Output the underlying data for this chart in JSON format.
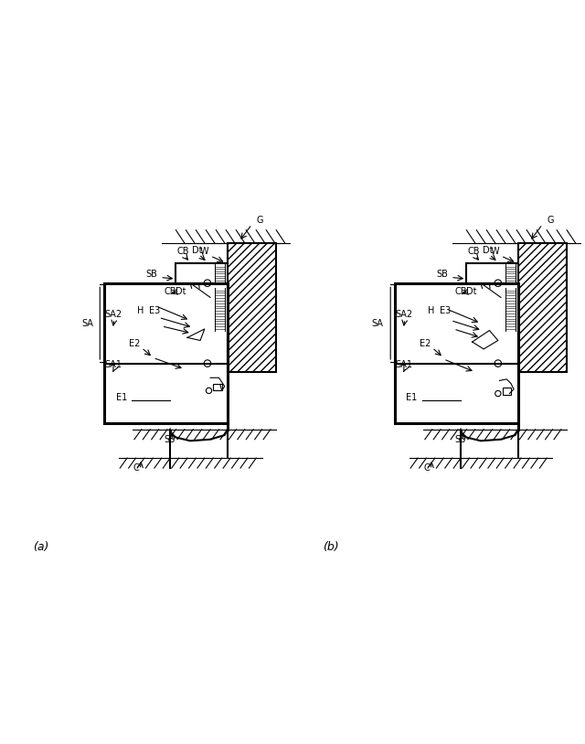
{
  "bg_color": "#ffffff",
  "line_color": "#000000",
  "hatch_color": "#000000",
  "panel_a_label": "(a)",
  "panel_b_label": "(b)",
  "labels": {
    "G": "G",
    "W": "W",
    "CB": "CB",
    "Dt": "Dt",
    "SB": "SB",
    "H": "H",
    "E3": "E3",
    "CB2": "CB",
    "Dt2": "Dt",
    "SA": "SA",
    "SA1": "SA1",
    "SA2": "SA2",
    "E2": "E2",
    "E1": "E1",
    "SS": "SS",
    "C": "C"
  }
}
